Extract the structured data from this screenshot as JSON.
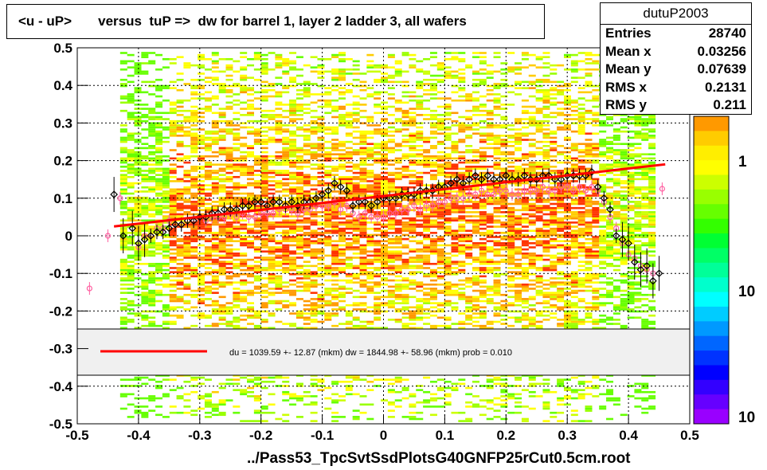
{
  "title": "<u - uP>       versus  tuP =>  dw for barrel 1, layer 2 ladder 3, all wafers",
  "stats": {
    "name": "dutuP2003",
    "rows": [
      {
        "label": "Entries",
        "value": "28740"
      },
      {
        "label": "Mean x",
        "value": "0.03256"
      },
      {
        "label": "Mean y",
        "value": "0.07639"
      },
      {
        "label": "RMS x",
        "value": "0.2131"
      },
      {
        "label": "RMS y",
        "value": "0.211"
      }
    ]
  },
  "footer": "../Pass53_TpcSvtSsdPlotsG40GNFP25rCut0.5cm.root",
  "fit_legend": "du = 1039.59 +- 12.87 (mkm) dw = 1844.98 +- 58.96 (mkm) prob = 0.010",
  "colors": {
    "fit_line": "#ff0000",
    "profile_black": "#000000",
    "profile_pink": "#ff5fa0",
    "legend_bg": "#f0f0f0"
  },
  "chart_data": {
    "type": "heatmap",
    "xlim": [
      -0.5,
      0.5
    ],
    "ylim": [
      -0.5,
      0.5
    ],
    "x_ticks": [
      "-0.5",
      "-0.4",
      "-0.3",
      "-0.2",
      "-0.1",
      "0",
      "0.1",
      "0.2",
      "0.3",
      "0.4",
      "0.5"
    ],
    "y_ticks": [
      "-0.5",
      "-0.4",
      "-0.3",
      "-0.2",
      "-0.1",
      "0",
      "0.1",
      "0.2",
      "0.3",
      "0.4",
      "0.5"
    ],
    "z_ticks": [
      "1",
      "10",
      "10"
    ],
    "grid": true,
    "fit_line": {
      "x": [
        -0.44,
        0.46
      ],
      "y": [
        0.025,
        0.19
      ]
    },
    "profile_black": {
      "x": [
        -0.44,
        -0.425,
        -0.41,
        -0.4,
        -0.39,
        -0.38,
        -0.37,
        -0.36,
        -0.35,
        -0.34,
        -0.33,
        -0.32,
        -0.31,
        -0.3,
        -0.29,
        -0.28,
        -0.27,
        -0.26,
        -0.25,
        -0.24,
        -0.23,
        -0.22,
        -0.21,
        -0.2,
        -0.19,
        -0.18,
        -0.17,
        -0.16,
        -0.15,
        -0.14,
        -0.13,
        -0.12,
        -0.11,
        -0.1,
        -0.09,
        -0.08,
        -0.07,
        -0.06,
        -0.05,
        -0.04,
        -0.03,
        -0.02,
        -0.01,
        0,
        0.01,
        0.02,
        0.03,
        0.04,
        0.05,
        0.06,
        0.07,
        0.08,
        0.09,
        0.1,
        0.11,
        0.12,
        0.13,
        0.14,
        0.15,
        0.16,
        0.17,
        0.18,
        0.19,
        0.2,
        0.21,
        0.22,
        0.23,
        0.24,
        0.25,
        0.26,
        0.27,
        0.28,
        0.29,
        0.3,
        0.31,
        0.32,
        0.33,
        0.34,
        0.35,
        0.36,
        0.37,
        0.38,
        0.39,
        0.4,
        0.41,
        0.42,
        0.43,
        0.44,
        0.45
      ],
      "y": [
        0.11,
        0.0,
        0.02,
        -0.02,
        -0.01,
        0.0,
        0.01,
        0.01,
        0.02,
        0.03,
        0.03,
        0.04,
        0.04,
        0.05,
        0.05,
        0.06,
        0.06,
        0.07,
        0.07,
        0.07,
        0.08,
        0.08,
        0.09,
        0.09,
        0.08,
        0.09,
        0.09,
        0.08,
        0.09,
        0.08,
        0.09,
        0.09,
        0.1,
        0.11,
        0.12,
        0.14,
        0.13,
        0.12,
        0.08,
        0.09,
        0.09,
        0.08,
        0.09,
        0.1,
        0.1,
        0.1,
        0.11,
        0.11,
        0.11,
        0.12,
        0.12,
        0.12,
        0.13,
        0.13,
        0.14,
        0.15,
        0.14,
        0.15,
        0.16,
        0.15,
        0.16,
        0.15,
        0.15,
        0.16,
        0.15,
        0.15,
        0.16,
        0.15,
        0.15,
        0.16,
        0.16,
        0.15,
        0.15,
        0.16,
        0.16,
        0.16,
        0.16,
        0.17,
        0.13,
        0.1,
        0.07,
        0.0,
        -0.01,
        -0.02,
        -0.07,
        -0.09,
        -0.08,
        -0.12,
        -0.1
      ]
    },
    "profile_pink": {
      "x": [
        -0.48,
        -0.45,
        -0.43,
        -0.4,
        -0.39,
        -0.38,
        -0.37,
        -0.36,
        -0.35,
        -0.34,
        -0.33,
        -0.32,
        -0.31,
        -0.3,
        -0.29,
        -0.28,
        -0.27,
        -0.26,
        -0.25,
        -0.24,
        -0.23,
        -0.22,
        -0.21,
        -0.2,
        -0.19,
        -0.18,
        -0.17,
        -0.16,
        -0.15,
        -0.14,
        -0.13,
        -0.12,
        -0.11,
        -0.1,
        -0.09,
        -0.08,
        -0.07,
        -0.06,
        -0.05,
        -0.04,
        -0.03,
        -0.02,
        -0.01,
        0,
        0.01,
        0.02,
        0.03,
        0.04,
        0.05,
        0.06,
        0.07,
        0.08,
        0.09,
        0.1,
        0.11,
        0.12,
        0.13,
        0.14,
        0.15,
        0.16,
        0.17,
        0.18,
        0.19,
        0.2,
        0.21,
        0.22,
        0.23,
        0.24,
        0.25,
        0.26,
        0.27,
        0.28,
        0.29,
        0.3,
        0.31,
        0.32,
        0.33,
        0.34,
        0.35,
        0.36,
        0.37,
        0.38,
        0.39,
        0.4,
        0.41,
        0.42,
        0.43,
        0.44,
        0.455
      ],
      "y": [
        -0.14,
        0.0,
        0.1,
        -0.03,
        0.0,
        0.0,
        0.02,
        0.02,
        0.04,
        0.03,
        0.03,
        0.04,
        0.04,
        0.05,
        0.04,
        0.05,
        0.05,
        0.05,
        0.06,
        0.05,
        0.06,
        0.05,
        0.05,
        0.06,
        0.06,
        0.06,
        0.07,
        0.07,
        0.07,
        0.06,
        0.07,
        0.07,
        0.08,
        0.08,
        0.08,
        0.09,
        0.07,
        0.08,
        0.06,
        0.05,
        0.06,
        0.05,
        0.05,
        0.05,
        0.06,
        0.06,
        0.07,
        0.07,
        0.08,
        0.07,
        0.08,
        0.08,
        0.09,
        0.09,
        0.1,
        0.1,
        0.1,
        0.11,
        0.11,
        0.12,
        0.11,
        0.11,
        0.12,
        0.12,
        0.11,
        0.11,
        0.12,
        0.12,
        0.12,
        0.13,
        0.12,
        0.12,
        0.13,
        0.13,
        0.12,
        0.13,
        0.12,
        0.13,
        0.12,
        0.09,
        0.05,
        0.02,
        -0.02,
        -0.05,
        -0.06,
        -0.08,
        -0.09,
        -0.1,
        0.125
      ]
    }
  }
}
